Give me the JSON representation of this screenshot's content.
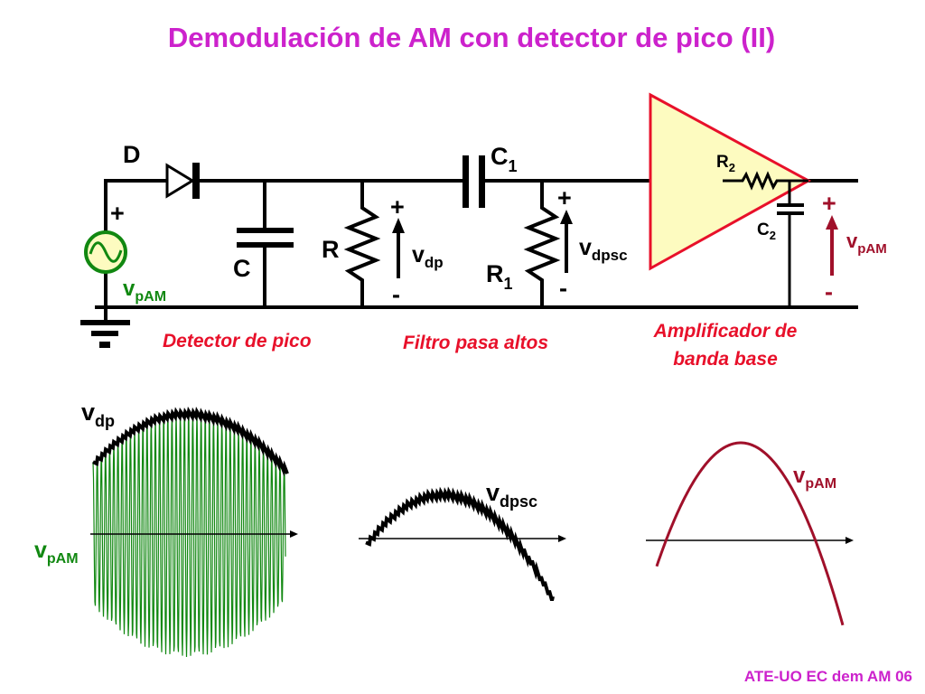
{
  "title": "Demodulación de AM con detector de pico (II)",
  "footer": "ATE-UO EC dem AM 06",
  "colors": {
    "title": "#cc22cc",
    "section_labels": "#e8102a",
    "source": "#118811",
    "output": "#a0102a",
    "amplifier_fill": "#fdfbc0",
    "amplifier_stroke": "#e8102a"
  },
  "circuit": {
    "diode": "D",
    "capacitor": "C",
    "resistor": "R",
    "capacitor1": {
      "main": "C",
      "sub": "1"
    },
    "resistor1": {
      "main": "R",
      "sub": "1"
    },
    "resistor2": {
      "main": "R",
      "sub": "2"
    },
    "capacitor2": {
      "main": "C",
      "sub": "2"
    },
    "source_label": {
      "main": "v",
      "sub": "pAM"
    },
    "vdp": {
      "main": "v",
      "sub": "dp"
    },
    "vdpsc": {
      "main": "v",
      "sub": "dpsc"
    },
    "vout": {
      "main": "v",
      "sub": "pAM"
    },
    "plus": "+",
    "minus": "-",
    "sections": {
      "detector": "Detector de pico",
      "filter": "Filtro pasa altos",
      "amplifier_line1": "Amplificador de",
      "amplifier_line2": "banda base"
    }
  },
  "waveforms": {
    "wave1_envelope": {
      "main": "v",
      "sub": "dp"
    },
    "wave1_carrier": {
      "main": "v",
      "sub": "pAM"
    },
    "wave2": {
      "main": "v",
      "sub": "dpsc"
    },
    "wave3": {
      "main": "v",
      "sub": "pAM"
    }
  }
}
